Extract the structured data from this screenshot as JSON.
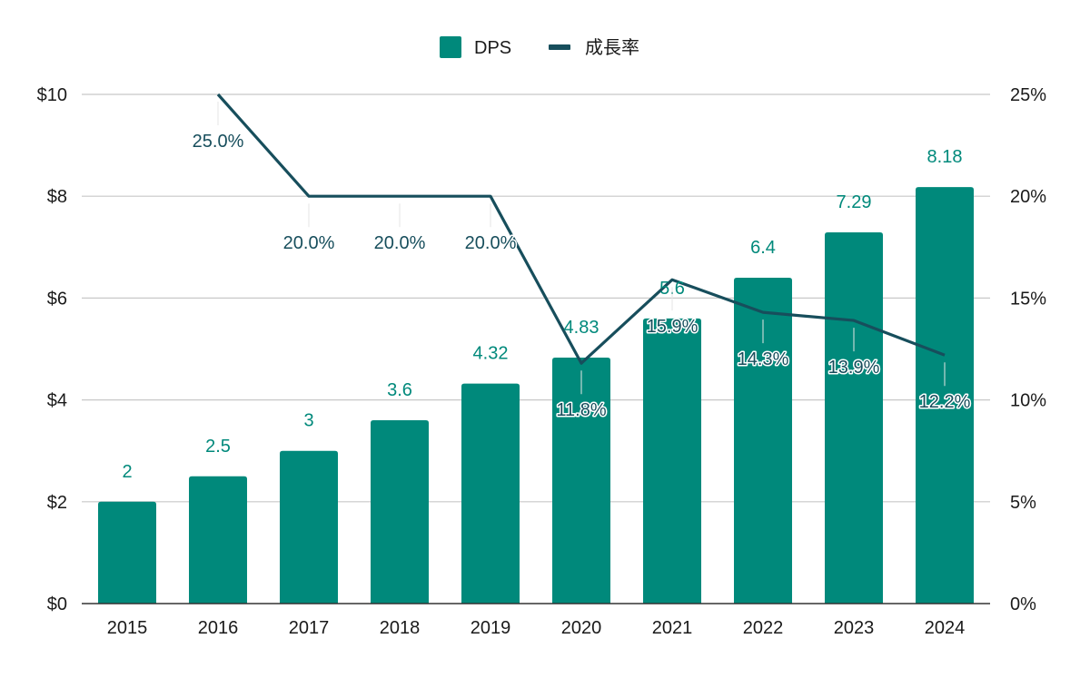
{
  "chart_data": {
    "type": "bar+line",
    "title": "",
    "categories": [
      "2015",
      "2016",
      "2017",
      "2018",
      "2019",
      "2020",
      "2021",
      "2022",
      "2023",
      "2024"
    ],
    "series": [
      {
        "name": "DPS",
        "type": "bar",
        "axis": "left",
        "color": "#00897b",
        "values": [
          2,
          2.5,
          3,
          3.6,
          4.32,
          4.83,
          5.6,
          6.4,
          7.29,
          8.18
        ],
        "labels": [
          "2",
          "2.5",
          "3",
          "3.6",
          "4.32",
          "4.83",
          "5.6",
          "6.4",
          "7.29",
          "8.18"
        ]
      },
      {
        "name": "成長率",
        "type": "line",
        "axis": "right",
        "color": "#174e5c",
        "values": [
          null,
          25.0,
          20.0,
          20.0,
          20.0,
          11.8,
          15.9,
          14.3,
          13.9,
          12.2
        ],
        "labels": [
          "",
          "25.0%",
          "20.0%",
          "20.0%",
          "20.0%",
          "11.8%",
          "15.9%",
          "14.3%",
          "13.9%",
          "12.2%"
        ]
      }
    ],
    "y_left": {
      "range": [
        0,
        10
      ],
      "ticks": [
        "$0",
        "$2",
        "$4",
        "$6",
        "$8",
        "$10"
      ]
    },
    "y_right": {
      "range": [
        0,
        25
      ],
      "ticks": [
        "0%",
        "5%",
        "10%",
        "15%",
        "20%",
        "25%"
      ]
    },
    "grid": true,
    "legend": "top-center"
  }
}
